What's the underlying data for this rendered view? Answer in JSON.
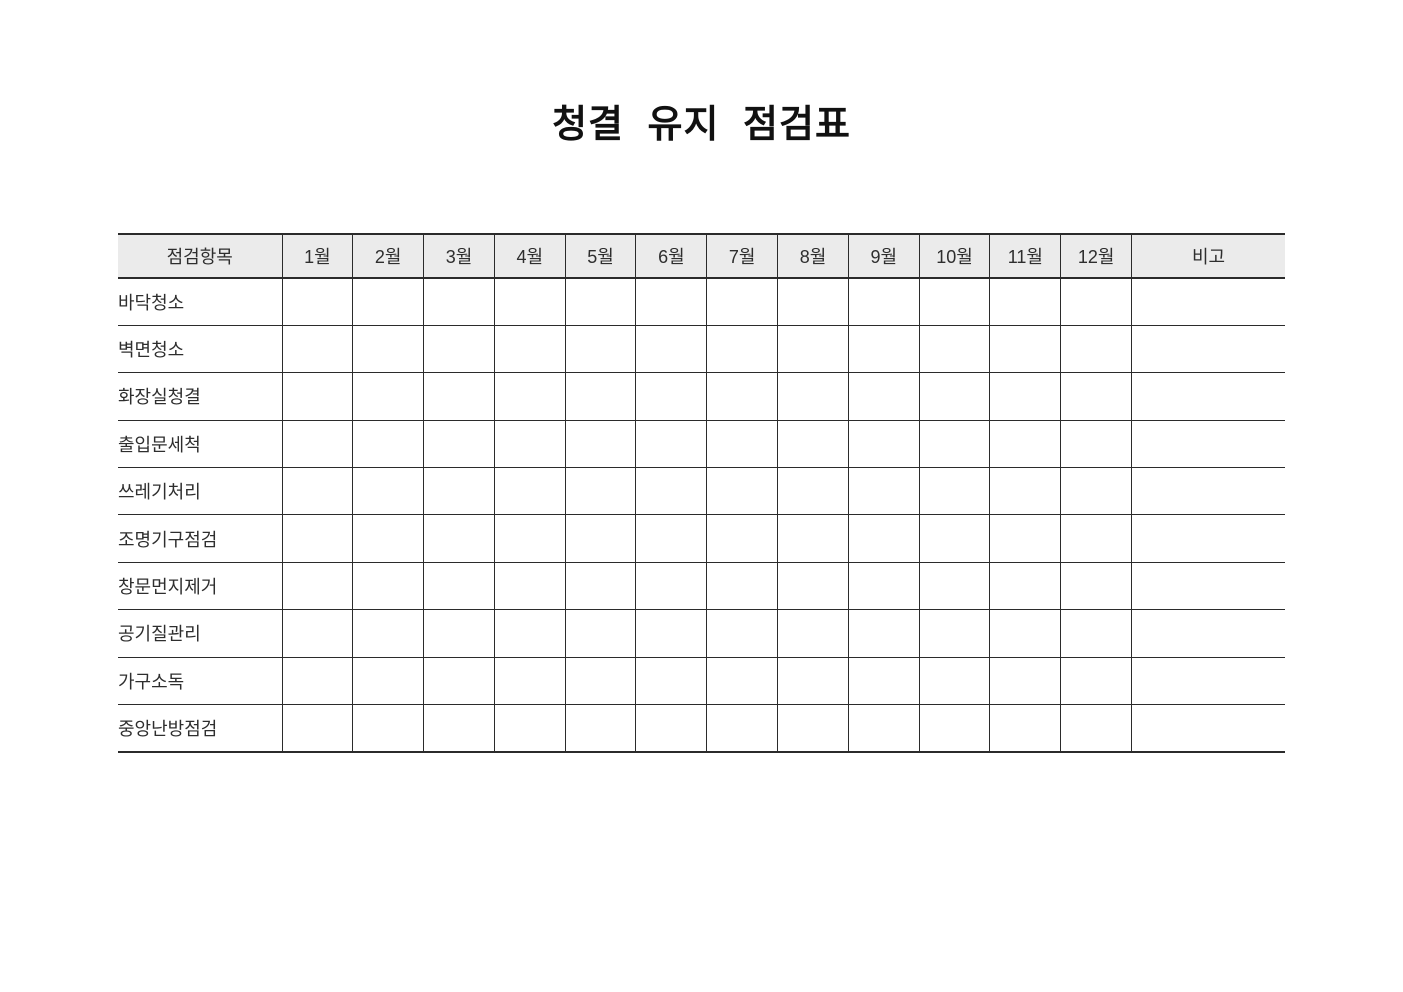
{
  "page": {
    "title": "청결 유지 점검표",
    "background": "#ffffff"
  },
  "colors": {
    "header_bg": "#ebebeb",
    "border": "#2b2b2b",
    "text": "#2e2e2e"
  },
  "table": {
    "header": {
      "item_column": "점검항목",
      "months": [
        "1월",
        "2월",
        "3월",
        "4월",
        "5월",
        "6월",
        "7월",
        "8월",
        "9월",
        "10월",
        "11월",
        "12월"
      ],
      "notes_column": "비고"
    },
    "rows": [
      {
        "label": "바닥청소",
        "values": [
          "",
          "",
          "",
          "",
          "",
          "",
          "",
          "",
          "",
          "",
          "",
          ""
        ],
        "note": ""
      },
      {
        "label": "벽면청소",
        "values": [
          "",
          "",
          "",
          "",
          "",
          "",
          "",
          "",
          "",
          "",
          "",
          ""
        ],
        "note": ""
      },
      {
        "label": "화장실청결",
        "values": [
          "",
          "",
          "",
          "",
          "",
          "",
          "",
          "",
          "",
          "",
          "",
          ""
        ],
        "note": ""
      },
      {
        "label": "출입문세척",
        "values": [
          "",
          "",
          "",
          "",
          "",
          "",
          "",
          "",
          "",
          "",
          "",
          ""
        ],
        "note": ""
      },
      {
        "label": "쓰레기처리",
        "values": [
          "",
          "",
          "",
          "",
          "",
          "",
          "",
          "",
          "",
          "",
          "",
          ""
        ],
        "note": ""
      },
      {
        "label": "조명기구점검",
        "values": [
          "",
          "",
          "",
          "",
          "",
          "",
          "",
          "",
          "",
          "",
          "",
          ""
        ],
        "note": ""
      },
      {
        "label": "창문먼지제거",
        "values": [
          "",
          "",
          "",
          "",
          "",
          "",
          "",
          "",
          "",
          "",
          "",
          ""
        ],
        "note": ""
      },
      {
        "label": "공기질관리",
        "values": [
          "",
          "",
          "",
          "",
          "",
          "",
          "",
          "",
          "",
          "",
          "",
          ""
        ],
        "note": ""
      },
      {
        "label": "가구소독",
        "values": [
          "",
          "",
          "",
          "",
          "",
          "",
          "",
          "",
          "",
          "",
          "",
          ""
        ],
        "note": ""
      },
      {
        "label": "중앙난방점검",
        "values": [
          "",
          "",
          "",
          "",
          "",
          "",
          "",
          "",
          "",
          "",
          "",
          ""
        ],
        "note": ""
      }
    ]
  }
}
